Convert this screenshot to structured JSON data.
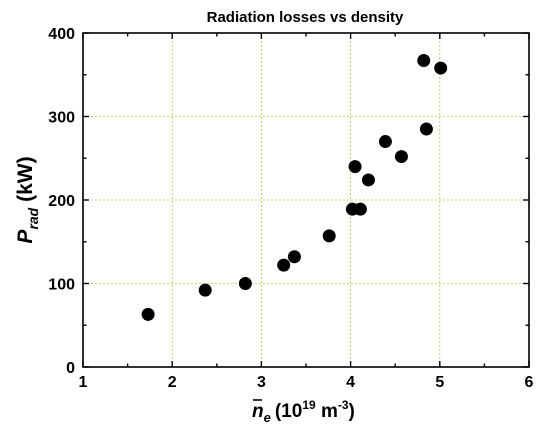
{
  "chart_data": {
    "type": "scatter",
    "title": "Radiation losses vs density",
    "xlabel": {
      "bar_symbol": "n",
      "subscript": "e",
      "unit_prefix": "(10",
      "unit_exp": "19",
      "unit_mid": " m",
      "unit_exp2": "-3",
      "unit_suffix": ")"
    },
    "ylabel": {
      "symbol": "P",
      "subscript": "rad",
      "unit": " (kW)"
    },
    "xlim": [
      1,
      6
    ],
    "ylim": [
      0,
      400
    ],
    "xticks": [
      1,
      2,
      3,
      4,
      5,
      6
    ],
    "yticks": [
      0,
      100,
      200,
      300,
      400
    ],
    "grid": true,
    "series": [
      {
        "color": "#000000",
        "marker": "circle",
        "x": [
          1.73,
          2.37,
          2.82,
          3.25,
          3.37,
          3.76,
          4.02,
          4.05,
          4.11,
          4.2,
          4.39,
          4.57,
          4.82,
          4.85,
          5.01
        ],
        "y": [
          63,
          92,
          100,
          122,
          132,
          157,
          189,
          240,
          189,
          224,
          270,
          252,
          367,
          285,
          358
        ]
      }
    ]
  }
}
